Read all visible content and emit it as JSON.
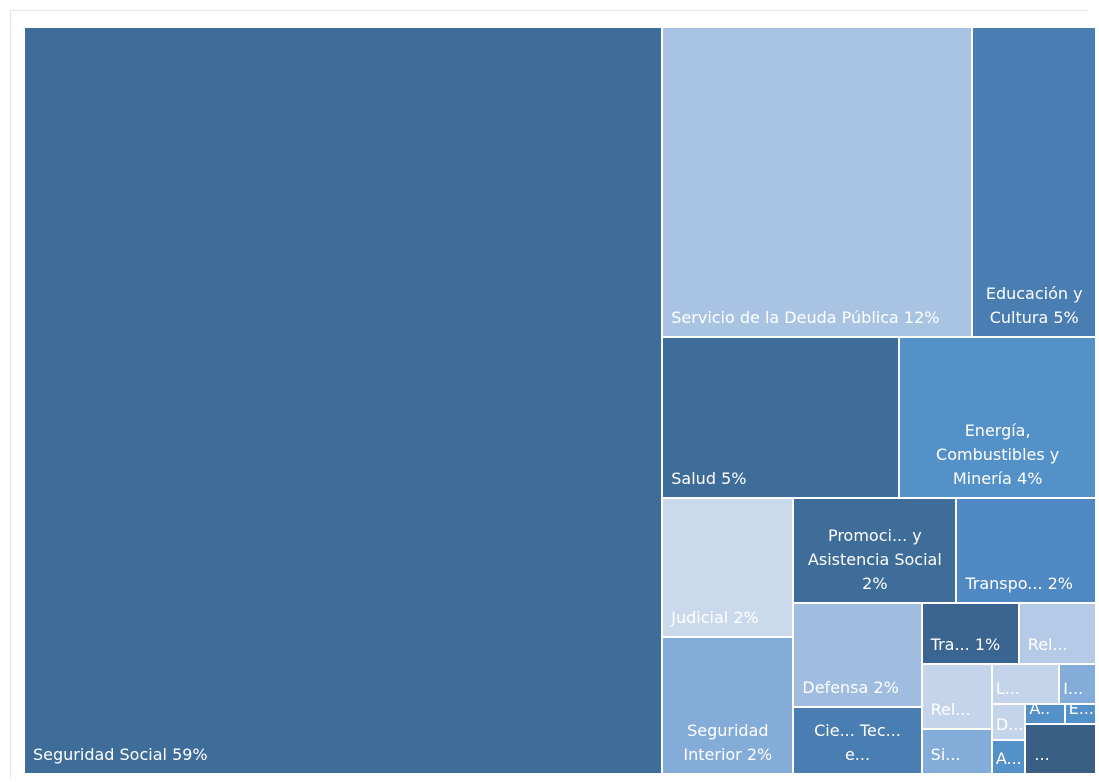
{
  "chart_data": {
    "type": "treemap",
    "categories": [
      "Seguridad Social",
      "Servicio de la Deuda Pública",
      "Educación y Cultura",
      "Salud",
      "Energía, Combustibles y Minería",
      "Judicial",
      "Seguridad Interior",
      "Promoci... y Asistencia Social",
      "Transpo...",
      "Defensa",
      "Cie... Tec... e...",
      "Tra...",
      "Rel...",
      "Rel...",
      "Si...",
      "L...",
      "I...",
      "D...",
      "A...",
      "A..",
      "E...",
      "..."
    ],
    "values": [
      58.6,
      11.8,
      4.7,
      4.7,
      3.9,
      2.25,
      2.2,
      2.1,
      1.8,
      1.65,
      1.05,
      0.73,
      0.58,
      0.56,
      0.39,
      0.33,
      0.18,
      0.15,
      0.14,
      0.1,
      0.08,
      0.43
    ],
    "value_labels": [
      "59%",
      "12%",
      "5%",
      "5%",
      "4%",
      "2%",
      "2%",
      "2%",
      "2%",
      "2%",
      null,
      "1%",
      null,
      null,
      null,
      null,
      null,
      null,
      null,
      null,
      null,
      null
    ],
    "colors": [
      "#3f6d99",
      "#a9c4e2",
      "#4a7db1",
      "#3f6d99",
      "#5591c9",
      "#cbd9ec",
      "#84acd8",
      "#3f6d99",
      "#4f88c2",
      "#a0bde0",
      "#4a7db1",
      "#3a6590",
      "#b5cae6",
      "#c4d4ea",
      "#84acd8",
      "#c4d4ea",
      "#84acd8",
      "#c4d4ea",
      "#5591c9",
      "#5591c9",
      "#5591c9",
      "#3a5f85"
    ]
  }
}
